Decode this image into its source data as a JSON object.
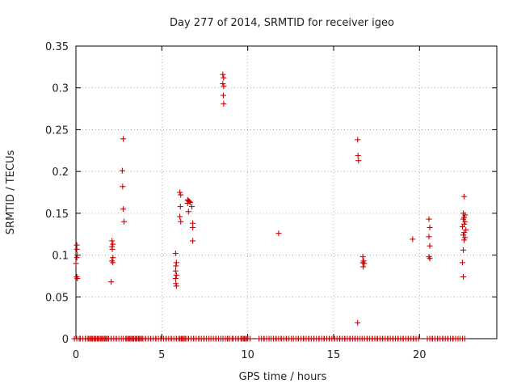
{
  "chart_data": {
    "type": "scatter",
    "title": "Day 277 of 2014, SRMTID for receiver igeo",
    "xlabel": "GPS time / hours",
    "ylabel": "SRMTID / TECUs",
    "xlim": [
      0,
      24.5
    ],
    "ylim": [
      0,
      0.35
    ],
    "xticks": [
      0,
      5,
      10,
      15,
      20
    ],
    "yticks": [
      0,
      0.05,
      0.1,
      0.15,
      0.2,
      0.25,
      0.3,
      0.35
    ],
    "grid": true,
    "colors": {
      "marker": "#cc0000",
      "axis": "#000000",
      "grid": "#9a9a9a"
    },
    "series": [
      {
        "name": "SRMTID",
        "marker": "plus",
        "points": [
          [
            0.05,
            0.112
          ],
          [
            0.05,
            0.107
          ],
          [
            0.08,
            0.1
          ],
          [
            0.05,
            0.097
          ],
          [
            0.0,
            0.09
          ],
          [
            0.05,
            0.074
          ],
          [
            0.08,
            0.072
          ],
          [
            2.1,
            0.117
          ],
          [
            2.15,
            0.113
          ],
          [
            2.1,
            0.11
          ],
          [
            2.12,
            0.107
          ],
          [
            2.15,
            0.097
          ],
          [
            2.1,
            0.093
          ],
          [
            2.15,
            0.091
          ],
          [
            2.05,
            0.068
          ],
          [
            2.75,
            0.239
          ],
          [
            2.7,
            0.201
          ],
          [
            2.72,
            0.182
          ],
          [
            2.75,
            0.155
          ],
          [
            2.8,
            0.14
          ],
          [
            5.8,
            0.102
          ],
          [
            5.85,
            0.091
          ],
          [
            5.82,
            0.087
          ],
          [
            5.8,
            0.081
          ],
          [
            5.85,
            0.076
          ],
          [
            5.8,
            0.072
          ],
          [
            5.82,
            0.066
          ],
          [
            5.85,
            0.063
          ],
          [
            6.05,
            0.175
          ],
          [
            6.1,
            0.172
          ],
          [
            6.08,
            0.158
          ],
          [
            6.05,
            0.146
          ],
          [
            6.1,
            0.14
          ],
          [
            6.5,
            0.166
          ],
          [
            6.55,
            0.165
          ],
          [
            6.6,
            0.164
          ],
          [
            6.65,
            0.163
          ],
          [
            6.5,
            0.162
          ],
          [
            6.55,
            0.152
          ],
          [
            6.75,
            0.158
          ],
          [
            6.8,
            0.138
          ],
          [
            6.8,
            0.133
          ],
          [
            6.8,
            0.117
          ],
          [
            8.55,
            0.316
          ],
          [
            8.6,
            0.312
          ],
          [
            8.55,
            0.305
          ],
          [
            8.6,
            0.302
          ],
          [
            8.58,
            0.291
          ],
          [
            8.6,
            0.281
          ],
          [
            11.8,
            0.126
          ],
          [
            16.4,
            0.238
          ],
          [
            16.42,
            0.219
          ],
          [
            16.45,
            0.213
          ],
          [
            16.7,
            0.098
          ],
          [
            16.75,
            0.093
          ],
          [
            16.7,
            0.091
          ],
          [
            16.78,
            0.09
          ],
          [
            16.72,
            0.086
          ],
          [
            16.4,
            0.019
          ],
          [
            19.6,
            0.119
          ],
          [
            20.55,
            0.143
          ],
          [
            20.6,
            0.133
          ],
          [
            20.55,
            0.122
          ],
          [
            20.6,
            0.111
          ],
          [
            20.55,
            0.098
          ],
          [
            20.6,
            0.096
          ],
          [
            22.6,
            0.17
          ],
          [
            22.55,
            0.15
          ],
          [
            22.65,
            0.148
          ],
          [
            22.6,
            0.145
          ],
          [
            22.55,
            0.143
          ],
          [
            22.65,
            0.14
          ],
          [
            22.6,
            0.137
          ],
          [
            22.5,
            0.134
          ],
          [
            22.7,
            0.13
          ],
          [
            22.6,
            0.127
          ],
          [
            22.55,
            0.124
          ],
          [
            22.65,
            0.121
          ],
          [
            22.6,
            0.118
          ],
          [
            22.55,
            0.106
          ],
          [
            22.5,
            0.091
          ],
          [
            22.55,
            0.074
          ]
        ]
      }
    ],
    "zero_points_x": [
      0.05,
      0.4,
      0.7,
      0.9,
      1.1,
      1.3,
      1.5,
      1.7,
      1.9,
      2.2,
      2.5,
      2.9,
      3.1,
      3.3,
      3.5,
      3.7,
      3.9,
      4.2,
      4.5,
      4.8,
      5.1,
      5.4,
      5.7,
      6.0,
      6.2,
      6.4,
      6.7,
      7.0,
      7.3,
      7.6,
      8.0,
      8.3,
      8.7,
      8.95,
      9.3,
      9.6,
      9.8,
      10.0,
      10.8,
      11.1,
      11.5,
      11.8,
      12.1,
      12.4,
      12.8,
      13.1,
      13.4,
      13.7,
      14.0,
      14.3,
      14.6,
      14.9,
      15.2,
      15.5,
      15.8,
      16.1,
      16.4,
      16.8,
      17.1,
      17.4,
      17.7,
      18.0,
      18.3,
      18.6,
      18.9,
      19.2,
      19.5,
      19.8,
      20.6,
      20.9,
      21.2,
      21.5,
      21.8,
      22.1,
      22.5
    ]
  }
}
